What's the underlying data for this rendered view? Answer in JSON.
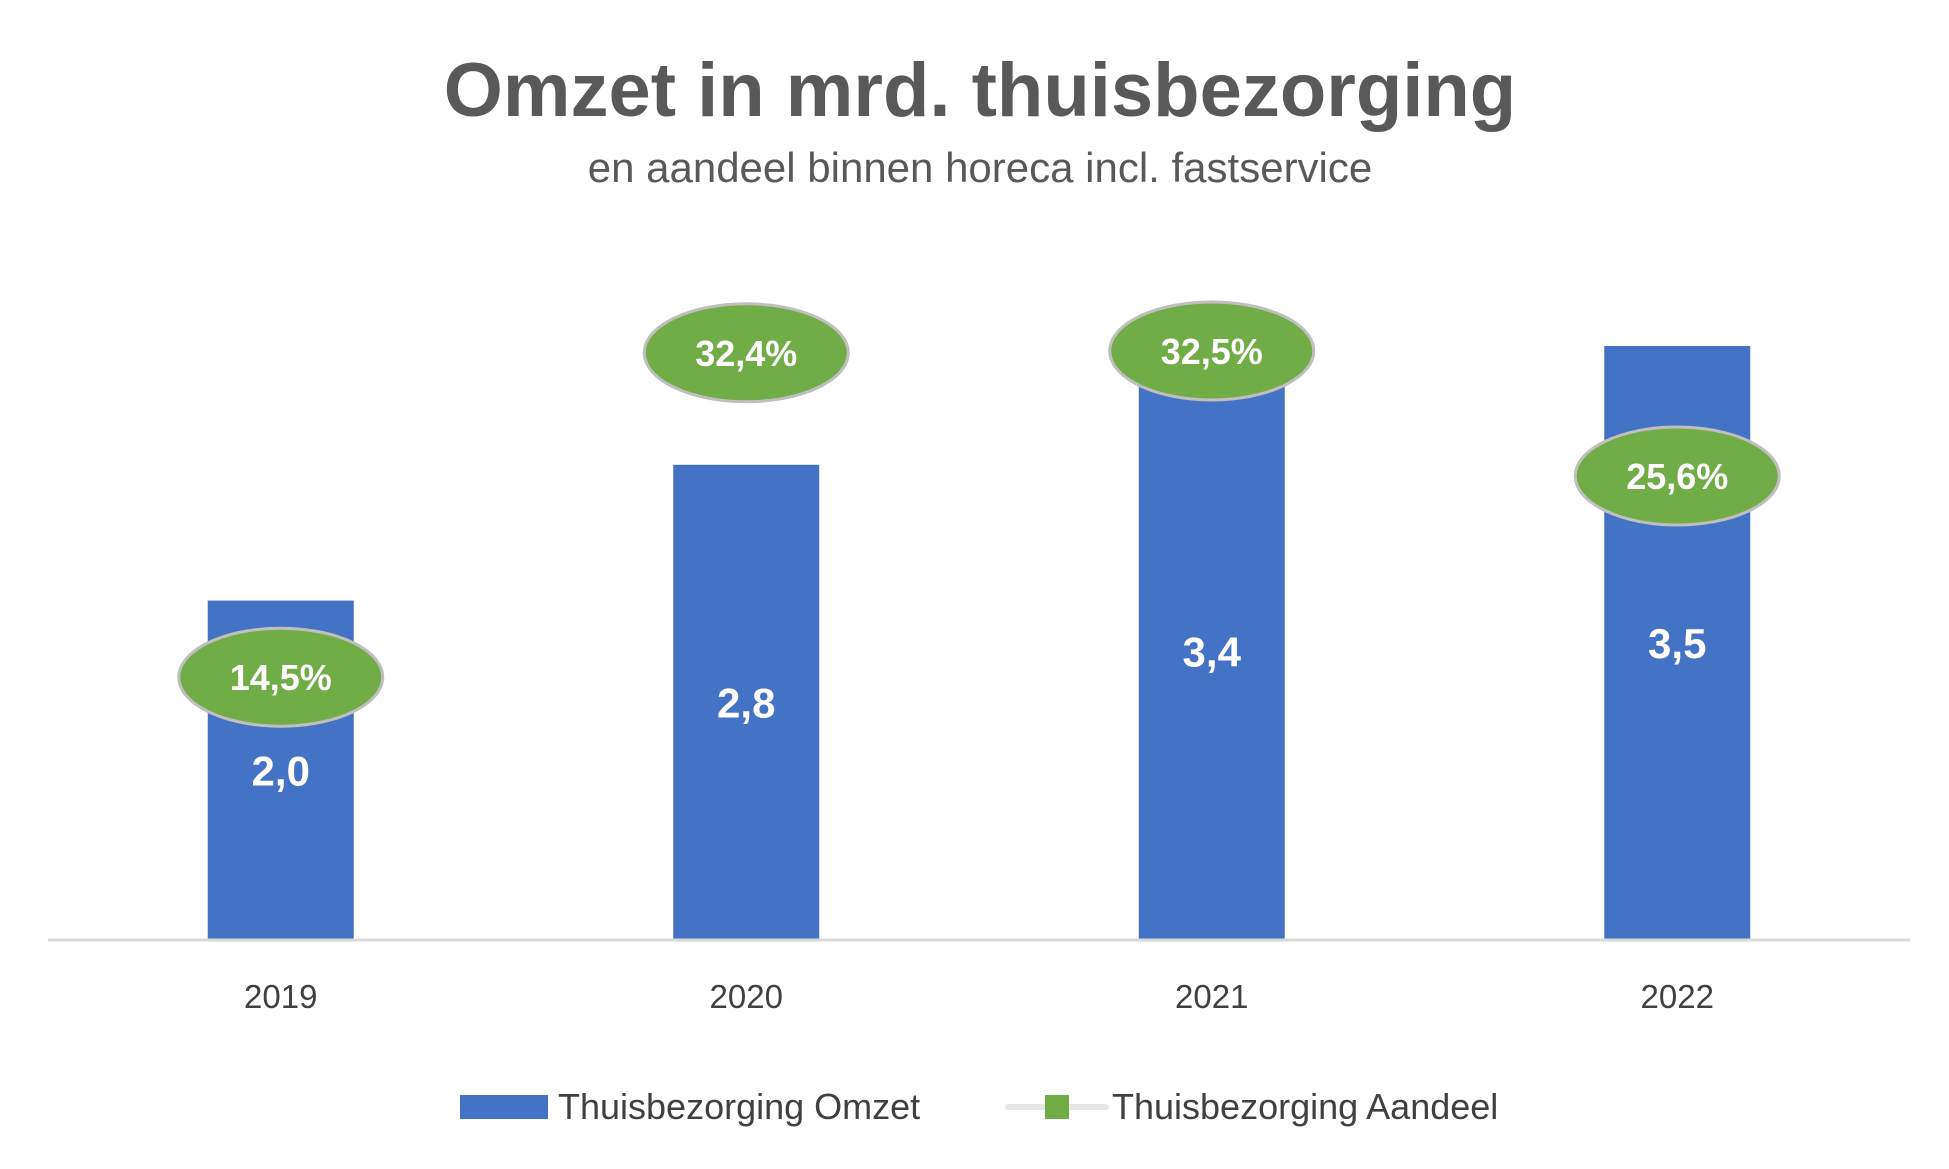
{
  "chart_data": {
    "type": "bar",
    "title": "Omzet in mrd. thuisbezorging",
    "subtitle": "en aandeel binnen horeca incl. fastservice",
    "categories": [
      "2019",
      "2020",
      "2021",
      "2022"
    ],
    "series": [
      {
        "name": "Thuisbezorging Omzet",
        "kind": "bar",
        "values": [
          2.0,
          2.8,
          3.4,
          3.5
        ],
        "labels": [
          "2,0",
          "2,8",
          "3,4",
          "3,5"
        ],
        "color": "#4472C4"
      },
      {
        "name": "Thuisbezorging Aandeel",
        "kind": "line",
        "values": [
          14.5,
          32.4,
          32.5,
          25.6
        ],
        "labels": [
          "14,5%",
          "32,4%",
          "32,5%",
          "25,6%"
        ],
        "color": "#70AD47",
        "line_visible": false
      }
    ],
    "ylim": [
      0,
      3.5
    ],
    "share_ylim": [
      0,
      40
    ],
    "legend": "bottom",
    "grid": false
  }
}
